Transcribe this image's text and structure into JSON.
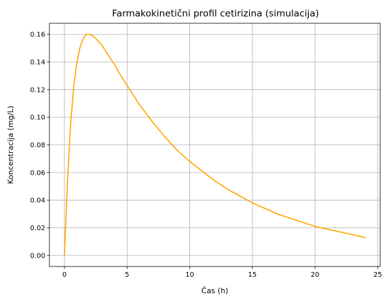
{
  "chart_data": {
    "type": "line",
    "title": "Farmakokinetični profil cetirizina (simulacija)",
    "xlabel": "Čas (h)",
    "ylabel": "Koncentracija (mg/L)",
    "xlim": [
      -1.2,
      25.2
    ],
    "ylim": [
      -0.008,
      0.168
    ],
    "grid": true,
    "x_ticks": [
      0,
      5,
      10,
      15,
      20,
      25
    ],
    "y_ticks": [
      0.0,
      0.02,
      0.04,
      0.06,
      0.08,
      0.1,
      0.12,
      0.14,
      0.16
    ],
    "x_tick_labels": [
      "0",
      "5",
      "10",
      "15",
      "20",
      "25"
    ],
    "y_tick_labels": [
      "0.00",
      "0.02",
      "0.04",
      "0.06",
      "0.08",
      "0.10",
      "0.12",
      "0.14",
      "0.16"
    ],
    "series": [
      {
        "color": "#FFA500",
        "x": [
          0,
          0.25,
          0.5,
          0.75,
          1.0,
          1.25,
          1.5,
          1.75,
          2.0,
          2.25,
          2.5,
          3,
          3.5,
          4,
          4.5,
          5,
          6,
          7,
          8,
          9,
          10,
          11,
          12,
          13,
          14,
          15,
          16,
          17,
          18,
          19,
          20,
          21,
          22,
          23,
          24
        ],
        "y": [
          0.0,
          0.055,
          0.096,
          0.123,
          0.14,
          0.151,
          0.157,
          0.16,
          0.16,
          0.159,
          0.157,
          0.152,
          0.145,
          0.138,
          0.13,
          0.123,
          0.109,
          0.097,
          0.086,
          0.076,
          0.068,
          0.061,
          0.054,
          0.048,
          0.043,
          0.038,
          0.034,
          0.03,
          0.027,
          0.024,
          0.021,
          0.019,
          0.017,
          0.015,
          0.013
        ]
      }
    ]
  }
}
